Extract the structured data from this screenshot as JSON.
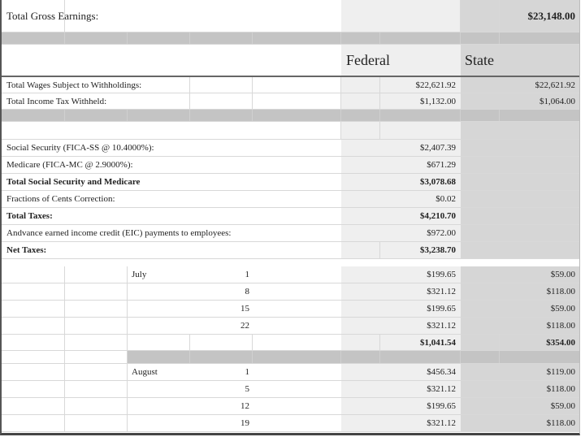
{
  "gross": {
    "label": "Total Gross Earnings:",
    "value": "$23,148.00"
  },
  "headers": {
    "federal": "Federal",
    "state": "State"
  },
  "withholding": [
    {
      "label": "Total Wages Subject to Withholdings:",
      "federal": "$22,621.92",
      "state": "$22,621.92"
    },
    {
      "label": "Total Income Tax Withheld:",
      "federal": "$1,132.00",
      "state": "$1,064.00"
    }
  ],
  "taxes": [
    {
      "label": "Social Security (FICA-SS @ 10.4000%):",
      "federal": "$2,407.39",
      "bold": false
    },
    {
      "label": "Medicare (FICA-MC @ 2.9000%):",
      "federal": "$671.29",
      "bold": false
    },
    {
      "label": "Total Social Security and Medicare",
      "federal": "$3,078.68",
      "bold": true
    },
    {
      "label": "Fractions of Cents Correction:",
      "federal": "$0.02",
      "bold": false
    },
    {
      "label": "Total Taxes:",
      "federal": "$4,210.70",
      "bold": true
    },
    {
      "label": "Andvance earned income credit (EIC) payments to employees:",
      "federal": "$972.00",
      "bold": false
    },
    {
      "label": "Net Taxes:",
      "federal": "$3,238.70",
      "bold": true
    }
  ],
  "months": [
    {
      "month": "July",
      "entries": [
        {
          "day": "1",
          "federal": "$199.65",
          "state": "$59.00"
        },
        {
          "day": "8",
          "federal": "$321.12",
          "state": "$118.00"
        },
        {
          "day": "15",
          "federal": "$199.65",
          "state": "$59.00"
        },
        {
          "day": "22",
          "federal": "$321.12",
          "state": "$118.00"
        }
      ],
      "total": {
        "federal": "$1,041.54",
        "state": "$354.00"
      }
    },
    {
      "month": "August",
      "entries": [
        {
          "day": "1",
          "federal": "$456.34",
          "state": "$119.00"
        },
        {
          "day": "5",
          "federal": "$321.12",
          "state": "$118.00"
        },
        {
          "day": "12",
          "federal": "$199.65",
          "state": "$59.00"
        },
        {
          "day": "19",
          "federal": "$321.12",
          "state": "$118.00"
        }
      ]
    }
  ],
  "colors": {
    "federal_bg": "#efefef",
    "state_bg": "#d6d6d6",
    "separator": "#c4c4c4"
  }
}
